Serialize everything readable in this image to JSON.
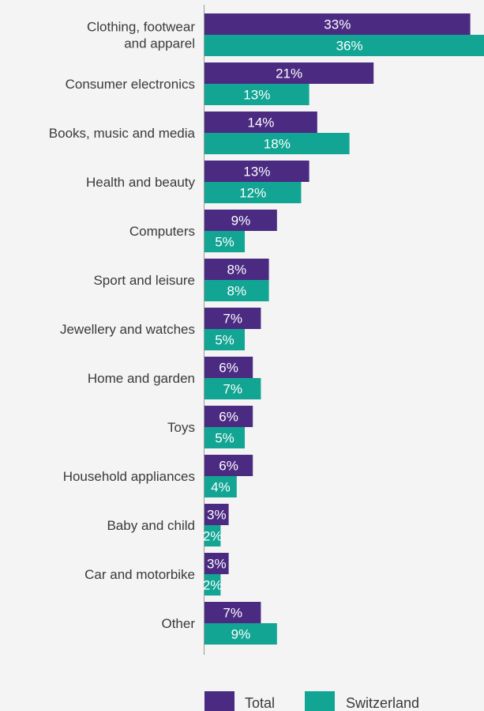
{
  "chart_data": {
    "type": "bar",
    "orientation": "horizontal",
    "categories": [
      [
        "Clothing, footwear",
        "and apparel"
      ],
      [
        "Consumer electronics"
      ],
      [
        "Books, music and media"
      ],
      [
        "Health and beauty"
      ],
      [
        "Computers"
      ],
      [
        "Sport and leisure"
      ],
      [
        "Jewellery and watches"
      ],
      [
        "Home and garden"
      ],
      [
        "Toys"
      ],
      [
        "Household appliances"
      ],
      [
        "Baby and child"
      ],
      [
        "Car and motorbike"
      ],
      [
        "Other"
      ]
    ],
    "series": [
      {
        "name": "Total",
        "color": "#4b2a82",
        "values": [
          33,
          21,
          14,
          13,
          9,
          8,
          7,
          6,
          6,
          6,
          3,
          3,
          7
        ],
        "labels": [
          "33%",
          "21%",
          "14%",
          "13%",
          "9%",
          "8%",
          "7%",
          "6%",
          "6%",
          "6%",
          "3%",
          "3%",
          "7%"
        ]
      },
      {
        "name": "Switzerland",
        "color": "#12a593",
        "values": [
          36,
          13,
          18,
          12,
          5,
          8,
          5,
          7,
          5,
          4,
          2,
          2,
          9
        ],
        "labels": [
          "36%",
          "13%",
          "18%",
          "12%",
          "5%",
          "8%",
          "5%",
          "7%",
          "5%",
          "4%",
          "2%",
          "2%",
          "9%"
        ]
      }
    ],
    "grid": false,
    "legend_position": "bottom"
  }
}
